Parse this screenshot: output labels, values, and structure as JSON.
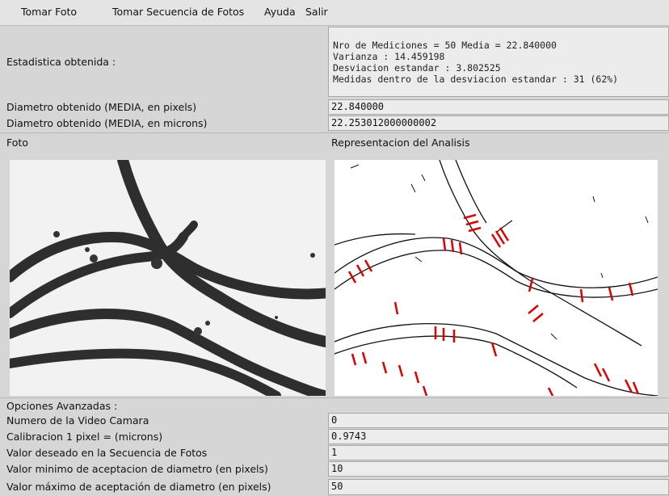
{
  "menu": [
    "Tomar Foto",
    "Tomar Secuencia de Fotos",
    "Ayuda",
    "Salir"
  ],
  "stats": {
    "label": "Estadistica obtenida :",
    "lines": [
      "Nro de Mediciones = 50 Media = 22.840000",
      "Varianza : 14.459198",
      "Desviacion estandar : 3.802525",
      "Medidas dentro de la desviacion estandar : 31 (62%)"
    ]
  },
  "diam_px": {
    "label": "Diametro obtenido (MEDIA, en pixels)",
    "value": "22.840000"
  },
  "diam_um": {
    "label": "Diametro obtenido (MEDIA, en microns)",
    "value": "22.253012000000002"
  },
  "photo_label": "Foto",
  "analysis_label": "Representacion del Analisis",
  "advanced": {
    "title": "Opciones Avanzadas :",
    "rows": [
      {
        "label": "Numero de la Video Camara",
        "value": "0"
      },
      {
        "label": "Calibracion 1 pixel = (microns)",
        "value": "0.9743"
      },
      {
        "label": "Valor deseado en la Secuencia de Fotos",
        "value": "1"
      },
      {
        "label": "Valor minimo de aceptacion de diametro (en pixels)",
        "value": "10"
      },
      {
        "label": "Valor máximo de aceptación de diametro (en pixels)",
        "value": "50"
      }
    ]
  }
}
